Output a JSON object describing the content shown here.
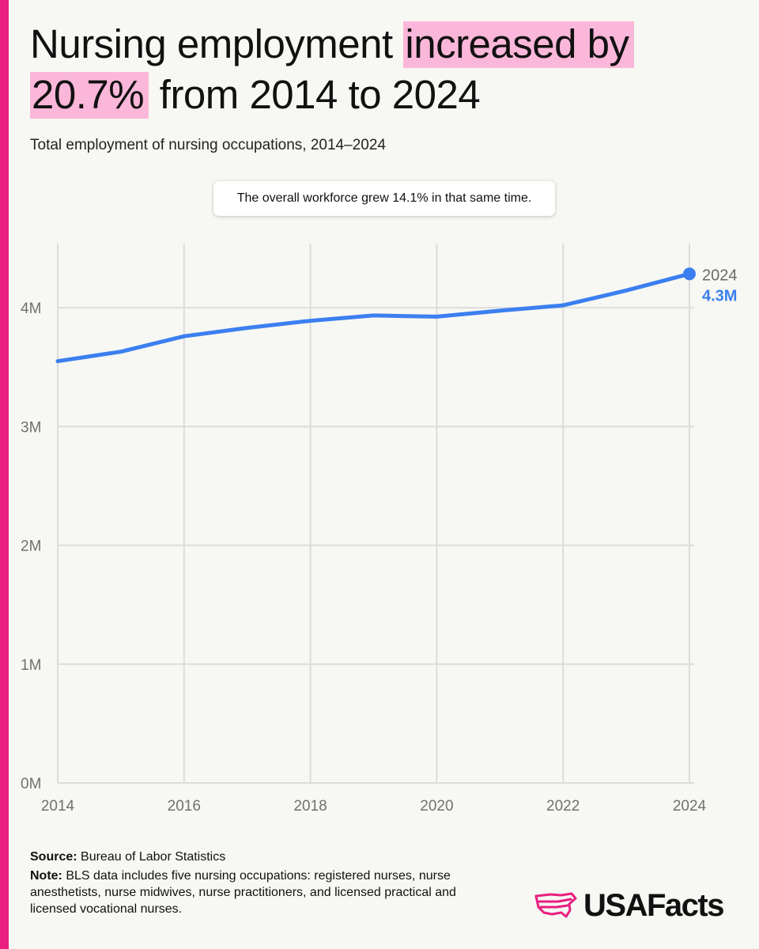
{
  "colors": {
    "accent": "#e91e7f",
    "highlight": "#fbb7d9",
    "line": "#3b7ff0",
    "grid": "#dcdcdc"
  },
  "header": {
    "title_part1": "Nursing employment ",
    "title_highlight1": "increased by",
    "title_highlight2": "20.7%",
    "title_part2": " from 2014 to 2024",
    "subtitle": "Total employment of nursing occupations, 2014–2024"
  },
  "callout": {
    "text": "The overall workforce grew 14.1% in that same time."
  },
  "chart_data": {
    "type": "line",
    "title": "Nursing employment increased by 20.7% from 2014 to 2024",
    "subtitle": "Total employment of nursing occupations, 2014–2024",
    "x": [
      2014,
      2015,
      2016,
      2017,
      2018,
      2019,
      2020,
      2021,
      2022,
      2023,
      2024
    ],
    "series": [
      {
        "values": [
          3550000,
          3630000,
          3760000,
          3830000,
          3890000,
          3935000,
          3925000,
          3975000,
          4020000,
          4145000,
          4285000
        ]
      }
    ],
    "xticks": [
      2014,
      2016,
      2018,
      2020,
      2022,
      2024
    ],
    "xtick_labels": [
      "2014",
      "2016",
      "2018",
      "2020",
      "2022",
      "2024"
    ],
    "yticks": [
      0,
      1000000,
      2000000,
      3000000,
      4000000
    ],
    "ytick_labels": [
      "0M",
      "1M",
      "2M",
      "3M",
      "4M"
    ],
    "xlim": [
      2014,
      2024
    ],
    "ylim": [
      0,
      4500000
    ],
    "grid": true,
    "end_label": {
      "year": "2024",
      "value": "4.3M"
    }
  },
  "footer": {
    "source_label": "Source:",
    "source_text": " Bureau of Labor Statistics",
    "note_label": "Note:",
    "note_text": " BLS data includes five nursing occupations: registered nurses, nurse anesthetists, nurse midwives, nurse practitioners, and licensed practical and licensed vocational nurses."
  },
  "logo": {
    "text": "USAFacts",
    "icon": "usa-map-icon"
  }
}
